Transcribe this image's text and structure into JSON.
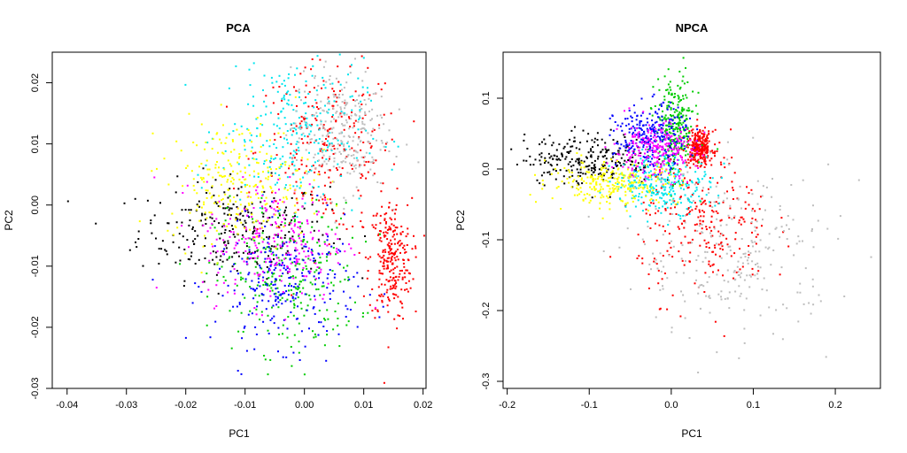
{
  "chart_data": [
    {
      "type": "scatter",
      "title": "PCA",
      "xlabel": "PC1",
      "ylabel": "PC2",
      "xlim": [
        -0.0425,
        0.0205
      ],
      "ylim": [
        -0.03,
        0.025
      ],
      "xticks": [
        "-0.04",
        "-0.03",
        "-0.02",
        "-0.01",
        "0.00",
        "0.01",
        "0.02"
      ],
      "xtick_values": [
        -0.04,
        -0.03,
        -0.02,
        -0.01,
        0.0,
        0.01,
        0.02
      ],
      "yticks": [
        "-0.03",
        "-0.02",
        "-0.01",
        "0.00",
        "0.01",
        "0.02"
      ],
      "ytick_values": [
        -0.03,
        -0.02,
        -0.01,
        0.0,
        0.01,
        0.02
      ],
      "grid": false,
      "legend": "none",
      "series": [
        {
          "color": "#000000",
          "center": [
            -0.012,
            -0.004
          ],
          "spread": [
            0.008,
            0.004
          ]
        },
        {
          "color": "#ff0000",
          "center": [
            0.004,
            0.009
          ],
          "spread": [
            0.006,
            0.007
          ]
        },
        {
          "color": "#ff0000",
          "center": [
            0.0145,
            -0.009
          ],
          "spread": [
            0.0018,
            0.005
          ]
        },
        {
          "color": "#00cc00",
          "center": [
            -0.003,
            -0.012
          ],
          "spread": [
            0.006,
            0.006
          ]
        },
        {
          "color": "#0000ff",
          "center": [
            -0.003,
            -0.013
          ],
          "spread": [
            0.006,
            0.005
          ]
        },
        {
          "color": "#00e5ee",
          "center": [
            -0.002,
            0.012
          ],
          "spread": [
            0.006,
            0.006
          ]
        },
        {
          "color": "#ff00ff",
          "center": [
            -0.005,
            -0.006
          ],
          "spread": [
            0.006,
            0.005
          ]
        },
        {
          "color": "#ffff00",
          "center": [
            -0.011,
            0.004
          ],
          "spread": [
            0.006,
            0.005
          ]
        },
        {
          "color": "#bebebe",
          "center": [
            0.006,
            0.012
          ],
          "spread": [
            0.004,
            0.005
          ]
        }
      ]
    },
    {
      "type": "scatter",
      "title": "NPCA",
      "xlabel": "PC1",
      "ylabel": "PC2",
      "xlim": [
        -0.205,
        0.255
      ],
      "ylim": [
        -0.31,
        0.165
      ],
      "xticks": [
        "-0.2",
        "-0.1",
        "0.0",
        "0.1",
        "0.2"
      ],
      "xtick_values": [
        -0.2,
        -0.1,
        0.0,
        0.1,
        0.2
      ],
      "yticks": [
        "-0.3",
        "-0.2",
        "-0.1",
        "0.0",
        "0.1"
      ],
      "ytick_values": [
        -0.3,
        -0.2,
        -0.1,
        0.0,
        0.1
      ],
      "grid": false,
      "legend": "none",
      "series": [
        {
          "color": "#000000",
          "center": [
            -0.1,
            0.015
          ],
          "spread": [
            0.04,
            0.018
          ]
        },
        {
          "color": "#ff0000",
          "center": [
            0.04,
            -0.08
          ],
          "spread": [
            0.04,
            0.05
          ]
        },
        {
          "color": "#ff0000",
          "center": [
            0.035,
            0.03
          ],
          "spread": [
            0.008,
            0.012
          ]
        },
        {
          "color": "#00cc00",
          "center": [
            0.005,
            0.06
          ],
          "spread": [
            0.012,
            0.035
          ]
        },
        {
          "color": "#0000ff",
          "center": [
            -0.025,
            0.045
          ],
          "spread": [
            0.022,
            0.022
          ]
        },
        {
          "color": "#00e5ee",
          "center": [
            -0.01,
            -0.02
          ],
          "spread": [
            0.03,
            0.02
          ]
        },
        {
          "color": "#ff00ff",
          "center": [
            -0.02,
            0.025
          ],
          "spread": [
            0.025,
            0.02
          ]
        },
        {
          "color": "#ffff00",
          "center": [
            -0.07,
            -0.02
          ],
          "spread": [
            0.04,
            0.015
          ]
        },
        {
          "color": "#bebebe",
          "center": [
            0.08,
            -0.12
          ],
          "spread": [
            0.06,
            0.06
          ]
        }
      ]
    }
  ]
}
